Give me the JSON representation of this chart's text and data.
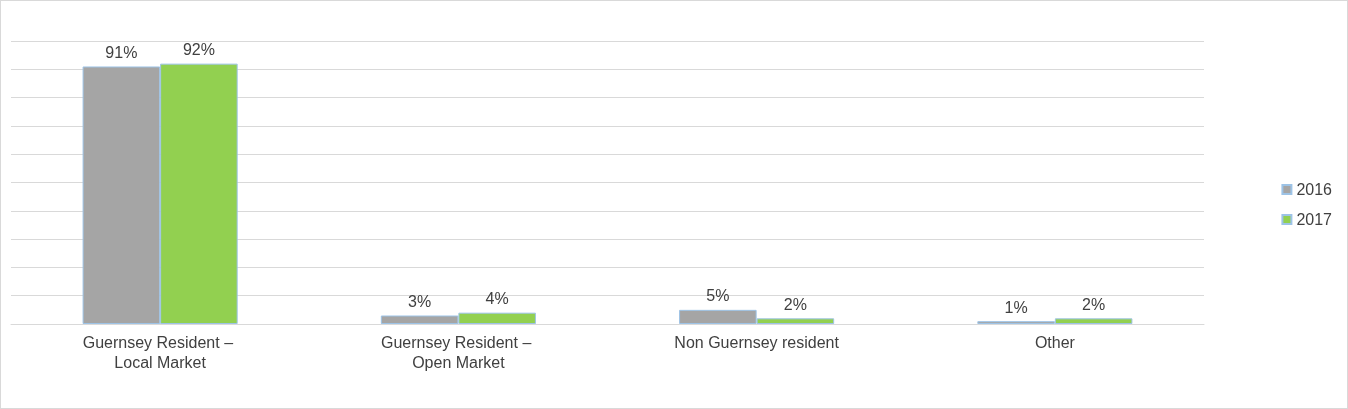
{
  "chart_data": {
    "type": "bar",
    "categories": [
      "Guernsey Resident – Local Market",
      "Guernsey Resident – Open Market",
      "Non Guernsey resident",
      "Other"
    ],
    "series": [
      {
        "name": "2016",
        "color": "#a5a5a5",
        "values": [
          91,
          3,
          5,
          1
        ],
        "value_labels": [
          "91%",
          "3%",
          "5%",
          "1%"
        ]
      },
      {
        "name": "2017",
        "color": "#92d050",
        "values": [
          92,
          4,
          2,
          2
        ],
        "value_labels": [
          "92%",
          "4%",
          "2%",
          "2%"
        ]
      }
    ],
    "ylim": [
      0,
      100
    ],
    "yticks": [
      0,
      10,
      20,
      30,
      40,
      50,
      60,
      70,
      80,
      90,
      100
    ],
    "tick_labels": "x",
    "grid": "y",
    "legend": "right"
  }
}
